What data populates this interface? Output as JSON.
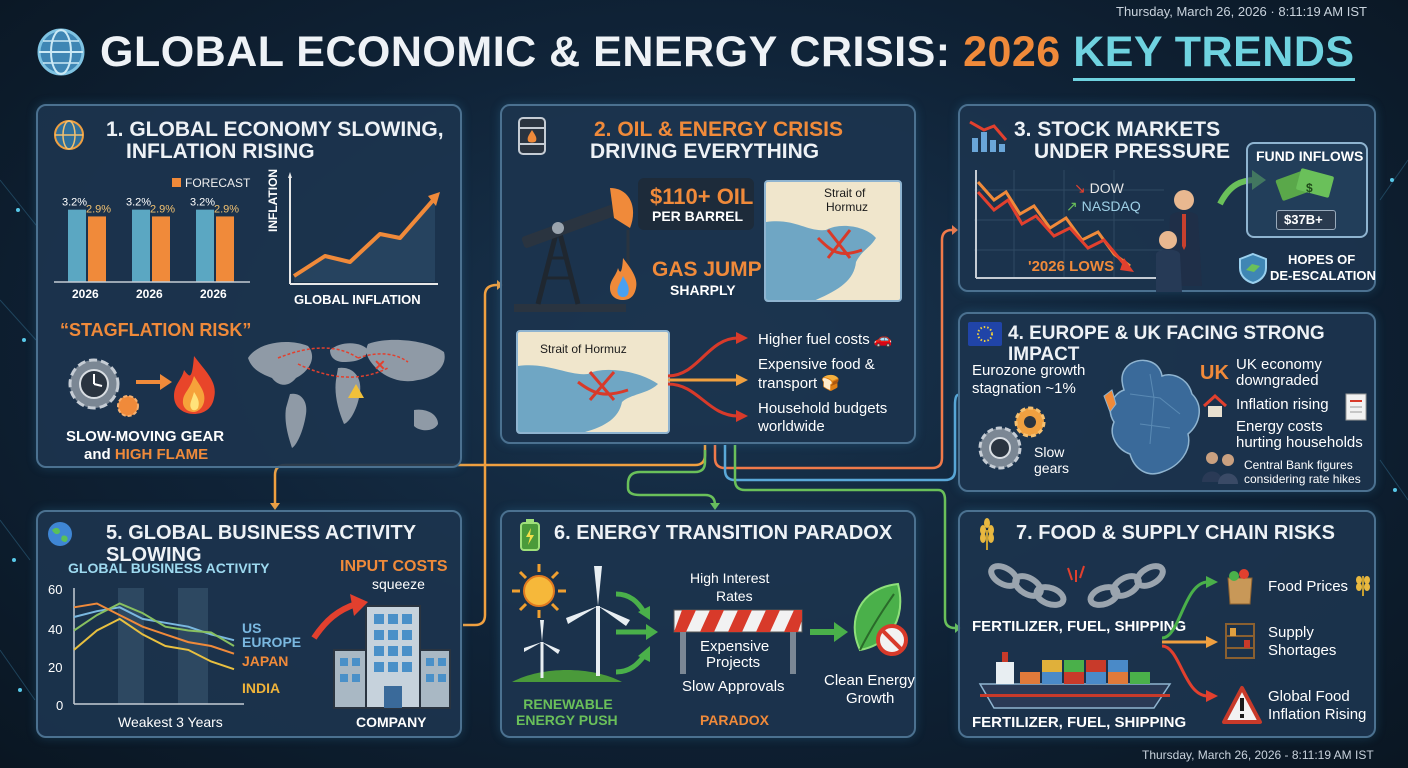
{
  "timestamp": "Thursday, March 26, 2026 · 8:11:19 AM IST",
  "footer_timestamp": "Thursday, March 26, 2026 - 8:11:19 AM IST",
  "title": {
    "main": "GLOBAL ECONOMIC & ENERGY CRISIS:",
    "year": "2026",
    "key": "KEY TRENDS",
    "icon": "globe-icon"
  },
  "p1": {
    "title1": "1. GLOBAL ECONOMY SLOWING,",
    "title2": "INFLATION RISING",
    "legend": "FORECAST",
    "bars": [
      {
        "year": "2026",
        "actual": "3.2%",
        "forecast": "2.9%",
        "a": 3.2,
        "f": 2.9
      },
      {
        "year": "2026",
        "actual": "3.2%",
        "forecast": "2.9%",
        "a": 3.2,
        "f": 2.9
      },
      {
        "year": "2026",
        "actual": "3.2%",
        "forecast": "2.9%",
        "a": 3.2,
        "f": 2.9
      }
    ],
    "ylabel": "INFLATION",
    "xlabel": "GLOBAL INFLATION",
    "stag": "“STAGFLATION RISK”",
    "cap1": "SLOW-MOVING GEAR",
    "cap2a": "and ",
    "cap2b": "HIGH FLAME",
    "colors": {
      "actual": "#5ba7c2",
      "forecast": "#f08a3a"
    }
  },
  "p2": {
    "title1": "2. OIL & ENERGY CRISIS",
    "title2": "DRIVING EVERYTHING",
    "oil_price": "$110+ OIL",
    "oil_unit": "PER BARREL",
    "gas1": "GAS JUMP",
    "gas2": "SHARPLY",
    "strait": "Strait of",
    "strait2": "Hormuz",
    "strait_full": "Strait of Hormuz",
    "effects": [
      "Higher fuel costs 🚗",
      "Expensive food &",
      "transport 🍞",
      "Household budgets",
      "worldwide"
    ]
  },
  "p3": {
    "title1": "3. STOCK MARKETS",
    "title2": "UNDER PRESSURE",
    "dow": "DOW",
    "nasdaq": "NASDAQ",
    "lows": "'2026 LOWS",
    "fund": "FUND INFLOWS",
    "amount": "$37B+",
    "hope1": "HOPES OF",
    "hope2": "DE-ESCALATION"
  },
  "p4": {
    "title": "4. EUROPE & UK FACING STRONG IMPACT",
    "ez1": "Eurozone growth",
    "ez2": "stagnation ~1%",
    "slow1": "Slow",
    "slow2": "gears",
    "uk": "UK",
    "uk1": "UK economy",
    "uk2": "downgraded",
    "infl": "Inflation rising",
    "en1": "Energy costs",
    "en2": "hurting households",
    "cb1": "Central Bank figures",
    "cb2": "considering rate hikes"
  },
  "p5": {
    "title": "5. GLOBAL BUSINESS ACTIVITY SLOWING",
    "chart_title": "GLOBAL BUSINESS ACTIVITY",
    "yticks": [
      "60",
      "40",
      "20",
      "0"
    ],
    "xlabel": "Weakest 3 Years",
    "input1": "INPUT COSTS",
    "input2": "squeeze",
    "company": "COMPANY"
  },
  "p6": {
    "title": "6. ENERGY TRANSITION PARADOX",
    "hr1": "High Interest",
    "hr2": "Rates",
    "ep1": "Expensive",
    "ep2": "Projects",
    "sa": "Slow Approvals",
    "ren1": "RENEWABLE",
    "ren2": "ENERGY PUSH",
    "paradox": "PARADOX",
    "ce1": "Clean Energy",
    "ce2": "Growth"
  },
  "p7": {
    "title": "7. FOOD & SUPPLY CHAIN RISKS",
    "chain": "FERTILIZER, FUEL, SHIPPING",
    "ship": "FERTILIZER, FUEL, SHIPPING",
    "fp": "Food Prices",
    "ss1": "Supply",
    "ss2": "Shortages",
    "gf1": "Global Food",
    "gf2": "Inflation Rising"
  },
  "chart_data": [
    {
      "type": "bar",
      "categories": [
        "2026",
        "2026",
        "2026"
      ],
      "series": [
        {
          "name": "",
          "values": [
            3.2,
            3.2,
            3.2
          ]
        },
        {
          "name": "FORECAST",
          "values": [
            2.9,
            2.9,
            2.9
          ]
        }
      ]
    },
    {
      "type": "line",
      "xlabel": "Weakest 3 Years",
      "ylim": [
        0,
        60
      ],
      "series": [
        {
          "name": "US",
          "values": [
            45,
            48,
            50,
            44,
            42,
            40,
            36,
            33
          ]
        },
        {
          "name": "EUROPE",
          "values": [
            38,
            46,
            52,
            47,
            40,
            38,
            37,
            30
          ]
        },
        {
          "name": "JAPAN",
          "values": [
            50,
            52,
            46,
            40,
            36,
            32,
            30,
            26
          ]
        },
        {
          "name": "INDIA",
          "values": [
            28,
            38,
            44,
            36,
            30,
            28,
            22,
            18
          ]
        }
      ]
    }
  ]
}
